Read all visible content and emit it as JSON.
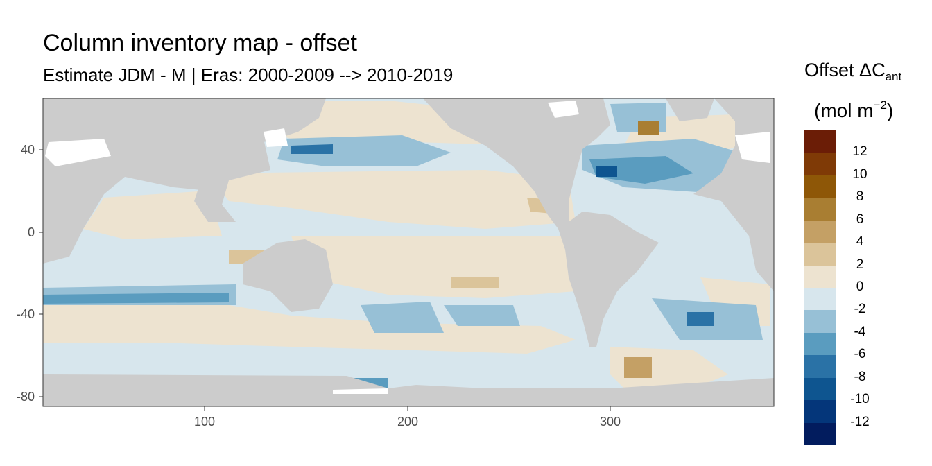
{
  "title": "Column inventory map - offset",
  "subtitle": "Estimate JDM - M | Eras: 2000-2009 --> 2010-2019",
  "legend": {
    "title_main": "Offset ΔC",
    "title_sub": "ant",
    "unit_prefix": "(mol m",
    "unit_sup": "−2",
    "unit_suffix": ")",
    "colors_top_to_bottom": [
      "#6b1d06",
      "#7f3a06",
      "#8e5707",
      "#a97e32",
      "#c4a065",
      "#dbc49a",
      "#ede3d0",
      "#d7e6ed",
      "#97c0d6",
      "#5a9cbf",
      "#2a72a6",
      "#0e5590",
      "#04367a",
      "#021c5e"
    ],
    "labels_top_to_bottom": [
      "12",
      "10",
      "8",
      "6",
      "4",
      "2",
      "0",
      "-2",
      "-4",
      "-6",
      "-8",
      "-10",
      "-12"
    ]
  },
  "axes": {
    "x_ticks": [
      "100",
      "200",
      "300"
    ],
    "y_ticks": [
      "40",
      "0",
      "-40",
      "-80"
    ]
  },
  "chart_data": {
    "type": "heatmap",
    "title": "Column inventory map - offset",
    "subtitle": "Estimate JDM - M | Eras: 2000-2009 --> 2010-2019",
    "x_ticks": [
      100,
      200,
      300
    ],
    "y_ticks": [
      40,
      0,
      -40,
      -80
    ],
    "xlim": [
      20,
      380
    ],
    "ylim": [
      -85,
      65
    ],
    "color_scale_breaks": [
      -12,
      -10,
      -8,
      -6,
      -4,
      -2,
      0,
      2,
      4,
      6,
      8,
      10,
      12
    ],
    "land_color": "#cccccc",
    "grid": false
  }
}
